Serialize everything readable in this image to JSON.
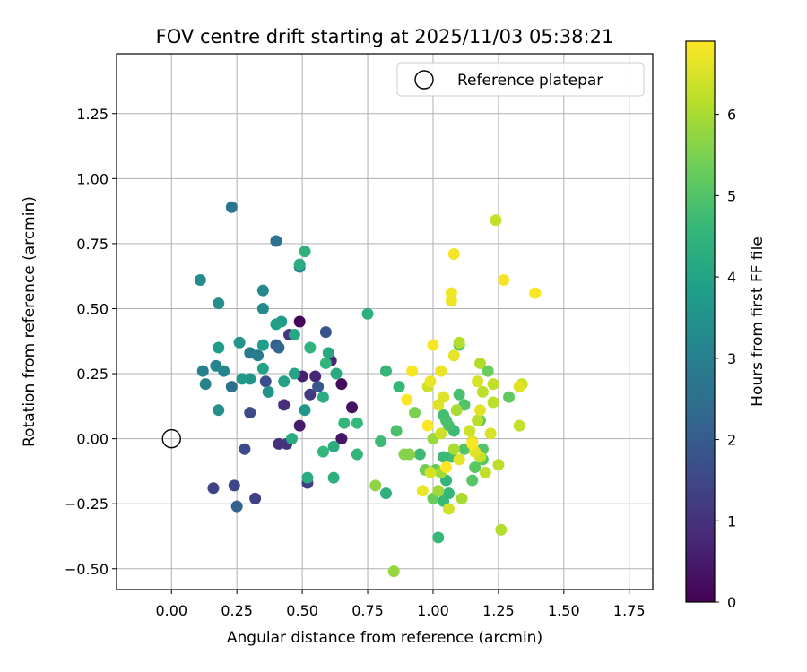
{
  "chart_data": {
    "type": "scatter",
    "title": "FOV centre drift starting at 2025/11/03 05:38:21",
    "xlabel": "Angular distance from reference (arcmin)",
    "ylabel": "Rotation from reference (arcmin)",
    "xlim": [
      -0.21,
      1.84
    ],
    "ylim": [
      -0.58,
      1.48
    ],
    "xticks": [
      "0.00",
      "0.25",
      "0.50",
      "0.75",
      "1.00",
      "1.25",
      "1.50",
      "1.75"
    ],
    "yticks": [
      "−0.50",
      "−0.25",
      "0.00",
      "0.25",
      "0.50",
      "0.75",
      "1.00",
      "1.25"
    ],
    "grid": true,
    "legend": {
      "position": "top-right",
      "label": "Reference platepar"
    },
    "reference_point": {
      "x": 0.0,
      "y": 0.0
    },
    "colorbar": {
      "label": "Hours from first FF file",
      "min": 0,
      "max": 6.9,
      "ticks": [
        "0",
        "1",
        "2",
        "3",
        "4",
        "5",
        "6"
      ],
      "colormap": [
        "#440154",
        "#482878",
        "#3e4989",
        "#31688e",
        "#26828e",
        "#1f9e89",
        "#35b779",
        "#6ece58",
        "#b5de2b",
        "#fde725"
      ]
    },
    "points": [
      {
        "x": 0.49,
        "y": 0.45,
        "t": 0.1
      },
      {
        "x": 0.65,
        "y": 0.21,
        "t": 0.2
      },
      {
        "x": 0.69,
        "y": 0.12,
        "t": 0.3
      },
      {
        "x": 0.65,
        "y": 0.0,
        "t": 0.4
      },
      {
        "x": 0.49,
        "y": 0.05,
        "t": 0.5
      },
      {
        "x": 0.5,
        "y": 0.24,
        "t": 0.6
      },
      {
        "x": 0.55,
        "y": 0.24,
        "t": 0.7
      },
      {
        "x": 0.61,
        "y": 0.3,
        "t": 0.8
      },
      {
        "x": 0.43,
        "y": 0.13,
        "t": 0.9
      },
      {
        "x": 0.41,
        "y": -0.02,
        "t": 1.0
      },
      {
        "x": 0.44,
        "y": -0.02,
        "t": 1.05
      },
      {
        "x": 0.45,
        "y": 0.4,
        "t": 1.1
      },
      {
        "x": 0.53,
        "y": 0.17,
        "t": 1.2
      },
      {
        "x": 0.52,
        "y": -0.17,
        "t": 1.3
      },
      {
        "x": 0.32,
        "y": -0.23,
        "t": 1.35
      },
      {
        "x": 0.16,
        "y": -0.19,
        "t": 1.4
      },
      {
        "x": 0.24,
        "y": -0.18,
        "t": 1.5
      },
      {
        "x": 0.28,
        "y": -0.04,
        "t": 1.55
      },
      {
        "x": 0.3,
        "y": 0.1,
        "t": 1.6
      },
      {
        "x": 0.36,
        "y": 0.22,
        "t": 1.7
      },
      {
        "x": 0.59,
        "y": 0.41,
        "t": 1.8
      },
      {
        "x": 0.56,
        "y": 0.2,
        "t": 1.9
      },
      {
        "x": 0.4,
        "y": 0.36,
        "t": 2.0
      },
      {
        "x": 0.25,
        "y": -0.26,
        "t": 2.2
      },
      {
        "x": 0.41,
        "y": 0.35,
        "t": 2.3
      },
      {
        "x": 0.23,
        "y": 0.2,
        "t": 2.5
      },
      {
        "x": 0.4,
        "y": 0.76,
        "t": 2.6
      },
      {
        "x": 0.23,
        "y": 0.89,
        "t": 2.7
      },
      {
        "x": 0.3,
        "y": 0.33,
        "t": 2.8
      },
      {
        "x": 0.33,
        "y": 0.32,
        "t": 2.9
      },
      {
        "x": 0.49,
        "y": 0.66,
        "t": 3.0
      },
      {
        "x": 0.12,
        "y": 0.26,
        "t": 3.05
      },
      {
        "x": 0.13,
        "y": 0.21,
        "t": 3.1
      },
      {
        "x": 0.17,
        "y": 0.28,
        "t": 3.15
      },
      {
        "x": 0.2,
        "y": 0.26,
        "t": 3.2
      },
      {
        "x": 0.35,
        "y": 0.57,
        "t": 3.25
      },
      {
        "x": 0.35,
        "y": 0.5,
        "t": 3.3
      },
      {
        "x": 0.11,
        "y": 0.61,
        "t": 3.35
      },
      {
        "x": 0.18,
        "y": 0.52,
        "t": 3.4
      },
      {
        "x": 0.18,
        "y": 0.11,
        "t": 3.45
      },
      {
        "x": 0.37,
        "y": 0.18,
        "t": 3.5
      },
      {
        "x": 0.26,
        "y": 0.37,
        "t": 3.55
      },
      {
        "x": 0.3,
        "y": 0.23,
        "t": 3.6
      },
      {
        "x": 0.51,
        "y": 0.11,
        "t": 3.65
      },
      {
        "x": 0.27,
        "y": 0.23,
        "t": 3.7
      },
      {
        "x": 0.42,
        "y": 0.45,
        "t": 3.75
      },
      {
        "x": 0.18,
        "y": 0.35,
        "t": 3.8
      },
      {
        "x": 0.35,
        "y": 0.36,
        "t": 3.85
      },
      {
        "x": 0.4,
        "y": 0.44,
        "t": 3.9
      },
      {
        "x": 0.35,
        "y": 0.27,
        "t": 3.95
      },
      {
        "x": 0.43,
        "y": 0.22,
        "t": 4.0
      },
      {
        "x": 0.47,
        "y": 0.25,
        "t": 4.05
      },
      {
        "x": 0.47,
        "y": 0.4,
        "t": 4.1
      },
      {
        "x": 0.6,
        "y": 0.33,
        "t": 4.15
      },
      {
        "x": 0.63,
        "y": 0.25,
        "t": 4.2
      },
      {
        "x": 0.46,
        "y": 0.0,
        "t": 4.2
      },
      {
        "x": 0.52,
        "y": -0.15,
        "t": 4.25
      },
      {
        "x": 0.62,
        "y": -0.03,
        "t": 4.3
      },
      {
        "x": 0.62,
        "y": -0.15,
        "t": 4.35
      },
      {
        "x": 0.58,
        "y": 0.16,
        "t": 4.3
      },
      {
        "x": 0.49,
        "y": 0.67,
        "t": 4.3
      },
      {
        "x": 0.51,
        "y": 0.72,
        "t": 4.4
      },
      {
        "x": 0.75,
        "y": 0.48,
        "t": 4.35
      },
      {
        "x": 0.53,
        "y": 0.35,
        "t": 4.45
      },
      {
        "x": 0.59,
        "y": 0.29,
        "t": 4.5
      },
      {
        "x": 0.58,
        "y": -0.05,
        "t": 4.55
      },
      {
        "x": 0.71,
        "y": -0.06,
        "t": 4.5
      },
      {
        "x": 0.66,
        "y": 0.06,
        "t": 4.55
      },
      {
        "x": 0.71,
        "y": 0.06,
        "t": 4.6
      },
      {
        "x": 0.82,
        "y": 0.26,
        "t": 4.6
      },
      {
        "x": 0.82,
        "y": -0.21,
        "t": 4.4
      },
      {
        "x": 0.87,
        "y": 0.2,
        "t": 4.6
      },
      {
        "x": 0.8,
        "y": -0.01,
        "t": 4.7
      },
      {
        "x": 0.86,
        "y": 0.03,
        "t": 4.9
      },
      {
        "x": 0.95,
        "y": -0.06,
        "t": 4.7
      },
      {
        "x": 1.02,
        "y": -0.38,
        "t": 4.6
      },
      {
        "x": 1.04,
        "y": -0.24,
        "t": 4.65
      },
      {
        "x": 1.06,
        "y": -0.21,
        "t": 4.6
      },
      {
        "x": 1.05,
        "y": -0.16,
        "t": 4.5
      },
      {
        "x": 1.08,
        "y": 0.03,
        "t": 4.7
      },
      {
        "x": 1.04,
        "y": 0.09,
        "t": 4.8
      },
      {
        "x": 1.05,
        "y": 0.07,
        "t": 4.85
      },
      {
        "x": 1.06,
        "y": 0.05,
        "t": 4.9
      },
      {
        "x": 1.07,
        "y": -0.07,
        "t": 4.8
      },
      {
        "x": 1.04,
        "y": -0.07,
        "t": 4.7
      },
      {
        "x": 1.1,
        "y": 0.17,
        "t": 4.85
      },
      {
        "x": 1.12,
        "y": 0.13,
        "t": 5.0
      },
      {
        "x": 1.1,
        "y": 0.36,
        "t": 5.1
      },
      {
        "x": 1.12,
        "y": -0.04,
        "t": 5.0
      },
      {
        "x": 1.15,
        "y": -0.16,
        "t": 5.05
      },
      {
        "x": 1.16,
        "y": -0.11,
        "t": 5.1
      },
      {
        "x": 1.19,
        "y": -0.04,
        "t": 5.0
      },
      {
        "x": 1.19,
        "y": -0.08,
        "t": 5.1
      },
      {
        "x": 1.18,
        "y": 0.07,
        "t": 5.2
      },
      {
        "x": 1.21,
        "y": 0.26,
        "t": 5.3
      },
      {
        "x": 1.29,
        "y": 0.16,
        "t": 5.2
      },
      {
        "x": 1.01,
        "y": -0.12,
        "t": 5.2
      },
      {
        "x": 1.0,
        "y": -0.23,
        "t": 5.3
      },
      {
        "x": 0.97,
        "y": -0.12,
        "t": 5.4
      },
      {
        "x": 0.93,
        "y": 0.1,
        "t": 5.5
      },
      {
        "x": 0.89,
        "y": -0.06,
        "t": 5.6
      },
      {
        "x": 0.91,
        "y": -0.06,
        "t": 5.6
      },
      {
        "x": 0.78,
        "y": -0.18,
        "t": 5.7
      },
      {
        "x": 0.85,
        "y": -0.51,
        "t": 5.8
      },
      {
        "x": 1.02,
        "y": -0.2,
        "t": 5.9
      },
      {
        "x": 1.03,
        "y": -0.13,
        "t": 5.9
      },
      {
        "x": 1.0,
        "y": 0.0,
        "t": 5.85
      },
      {
        "x": 1.09,
        "y": 0.11,
        "t": 6.0
      },
      {
        "x": 1.08,
        "y": -0.04,
        "t": 6.0
      },
      {
        "x": 1.11,
        "y": -0.23,
        "t": 6.0
      },
      {
        "x": 1.1,
        "y": 0.37,
        "t": 6.1
      },
      {
        "x": 1.18,
        "y": 0.29,
        "t": 6.1
      },
      {
        "x": 1.19,
        "y": 0.18,
        "t": 6.2
      },
      {
        "x": 1.23,
        "y": 0.14,
        "t": 6.2
      },
      {
        "x": 1.23,
        "y": 0.21,
        "t": 6.25
      },
      {
        "x": 1.25,
        "y": -0.1,
        "t": 6.2
      },
      {
        "x": 1.26,
        "y": -0.35,
        "t": 6.1
      },
      {
        "x": 1.17,
        "y": 0.07,
        "t": 6.15
      },
      {
        "x": 1.2,
        "y": -0.13,
        "t": 6.25
      },
      {
        "x": 1.24,
        "y": 0.84,
        "t": 6.3
      },
      {
        "x": 1.33,
        "y": 0.05,
        "t": 6.3
      },
      {
        "x": 1.34,
        "y": 0.21,
        "t": 6.35
      },
      {
        "x": 1.14,
        "y": 0.03,
        "t": 6.4
      },
      {
        "x": 1.18,
        "y": -0.07,
        "t": 6.35
      },
      {
        "x": 1.03,
        "y": 0.02,
        "t": 6.4
      },
      {
        "x": 0.98,
        "y": 0.2,
        "t": 6.4
      },
      {
        "x": 1.06,
        "y": -0.27,
        "t": 6.45
      },
      {
        "x": 0.99,
        "y": -0.13,
        "t": 6.45
      },
      {
        "x": 1.15,
        "y": -0.01,
        "t": 6.5
      },
      {
        "x": 1.17,
        "y": 0.22,
        "t": 6.5
      },
      {
        "x": 1.22,
        "y": 0.02,
        "t": 6.5
      },
      {
        "x": 1.02,
        "y": 0.13,
        "t": 6.55
      },
      {
        "x": 1.04,
        "y": 0.16,
        "t": 6.55
      },
      {
        "x": 1.16,
        "y": -0.05,
        "t": 6.6
      },
      {
        "x": 1.18,
        "y": 0.11,
        "t": 6.6
      },
      {
        "x": 1.33,
        "y": 0.2,
        "t": 6.6
      },
      {
        "x": 1.1,
        "y": -0.08,
        "t": 6.65
      },
      {
        "x": 1.08,
        "y": 0.32,
        "t": 6.65
      },
      {
        "x": 1.03,
        "y": 0.26,
        "t": 6.7
      },
      {
        "x": 0.96,
        "y": -0.2,
        "t": 6.7
      },
      {
        "x": 0.99,
        "y": 0.22,
        "t": 6.7
      },
      {
        "x": 1.07,
        "y": 0.56,
        "t": 6.75
      },
      {
        "x": 1.07,
        "y": 0.53,
        "t": 6.75
      },
      {
        "x": 1.08,
        "y": 0.71,
        "t": 6.8
      },
      {
        "x": 1.27,
        "y": 0.61,
        "t": 6.8
      },
      {
        "x": 1.39,
        "y": 0.56,
        "t": 6.85
      },
      {
        "x": 1.0,
        "y": 0.36,
        "t": 6.85
      },
      {
        "x": 0.92,
        "y": 0.26,
        "t": 6.85
      },
      {
        "x": 0.9,
        "y": 0.15,
        "t": 6.9
      },
      {
        "x": 0.98,
        "y": 0.05,
        "t": 6.9
      },
      {
        "x": 1.05,
        "y": -0.11,
        "t": 6.9
      },
      {
        "x": 1.15,
        "y": -0.02,
        "t": 6.9
      }
    ]
  }
}
